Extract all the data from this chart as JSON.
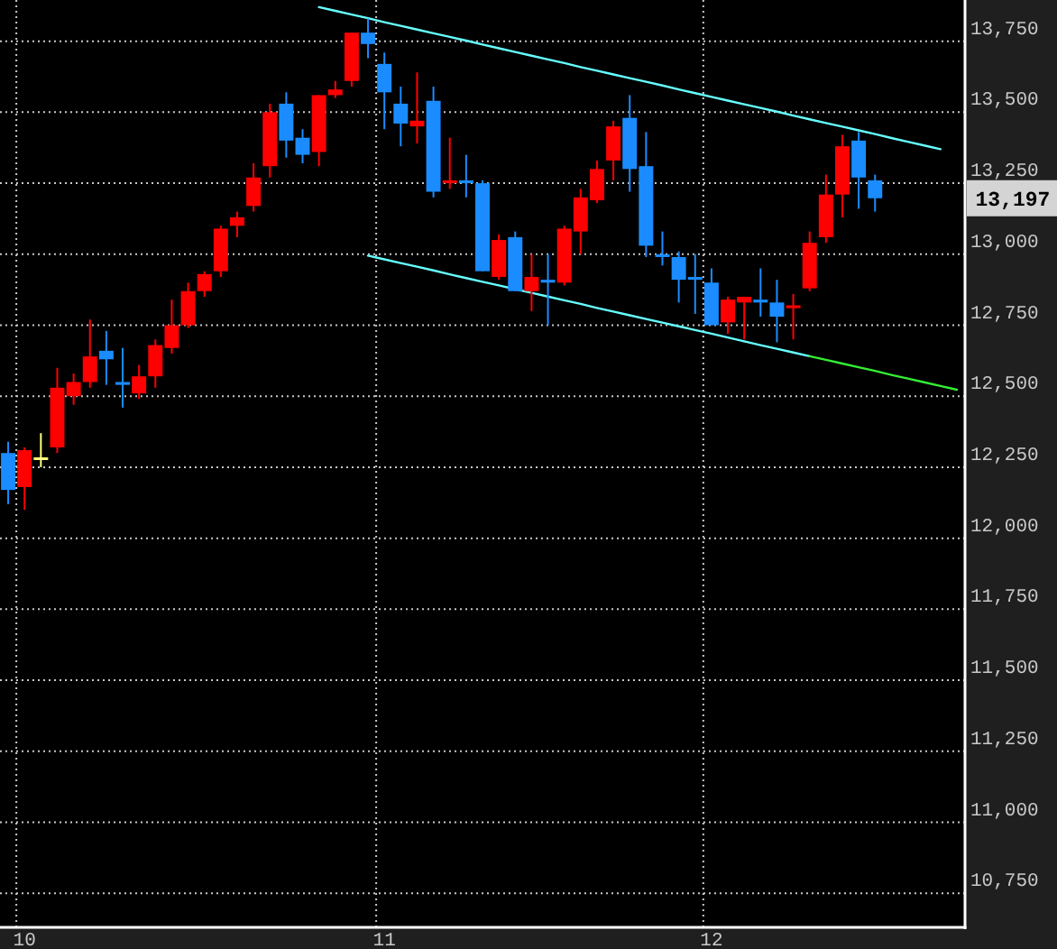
{
  "chart_data": {
    "type": "candlestick",
    "categories": [
      null,
      "10",
      null,
      null,
      null,
      null,
      null,
      null,
      null,
      null,
      null,
      null,
      null,
      null,
      null,
      null,
      null,
      null,
      null,
      null,
      null,
      null,
      null,
      "11",
      null,
      null,
      null,
      null,
      null,
      null,
      null,
      null,
      null,
      null,
      null,
      null,
      null,
      null,
      null,
      null,
      null,
      null,
      null,
      "12",
      null,
      null,
      null,
      null,
      null,
      null,
      null,
      null,
      null,
      null,
      null,
      null,
      null,
      null,
      null
    ],
    "ohlc": [
      [
        12300,
        12340,
        12120,
        12170
      ],
      [
        12180,
        12320,
        12100,
        12310
      ],
      [
        12280,
        12370,
        12250,
        12280
      ],
      [
        12320,
        12600,
        12300,
        12530
      ],
      [
        12500,
        12580,
        12470,
        12550
      ],
      [
        12550,
        12770,
        12530,
        12640
      ],
      [
        12660,
        12730,
        12540,
        12630
      ],
      [
        12550,
        12670,
        12460,
        12540
      ],
      [
        12510,
        12610,
        12490,
        12570
      ],
      [
        12570,
        12700,
        12530,
        12680
      ],
      [
        12670,
        12840,
        12650,
        12750
      ],
      [
        12750,
        12900,
        12740,
        12870
      ],
      [
        12870,
        12940,
        12850,
        12930
      ],
      [
        12940,
        13100,
        12920,
        13090
      ],
      [
        13100,
        13150,
        13060,
        13130
      ],
      [
        13170,
        13320,
        13150,
        13270
      ],
      [
        13310,
        13530,
        13270,
        13500
      ],
      [
        13530,
        13570,
        13340,
        13400
      ],
      [
        13410,
        13440,
        13320,
        13350
      ],
      [
        13360,
        13560,
        13310,
        13560
      ],
      [
        13560,
        13610,
        13550,
        13580
      ],
      [
        13610,
        13780,
        13590,
        13780
      ],
      [
        13780,
        13830,
        13690,
        13740
      ],
      [
        13670,
        13710,
        13440,
        13570
      ],
      [
        13530,
        13590,
        13380,
        13460
      ],
      [
        13450,
        13640,
        13390,
        13470
      ],
      [
        13540,
        13590,
        13200,
        13220
      ],
      [
        13250,
        13410,
        13230,
        13260
      ],
      [
        13260,
        13350,
        13200,
        13250
      ],
      [
        13250,
        13260,
        12940,
        12940
      ],
      [
        12920,
        13070,
        12910,
        13050
      ],
      [
        13060,
        13080,
        12870,
        12870
      ],
      [
        12870,
        13000,
        12800,
        12920
      ],
      [
        12910,
        13000,
        12750,
        12900
      ],
      [
        12900,
        13100,
        12890,
        13090
      ],
      [
        13080,
        13230,
        13000,
        13200
      ],
      [
        13190,
        13330,
        13180,
        13300
      ],
      [
        13330,
        13470,
        13260,
        13450
      ],
      [
        13480,
        13560,
        13220,
        13300
      ],
      [
        13310,
        13430,
        12990,
        13030
      ],
      [
        13000,
        13080,
        12960,
        12990
      ],
      [
        12990,
        13010,
        12830,
        12910
      ],
      [
        12920,
        13000,
        12790,
        12910
      ],
      [
        12900,
        12950,
        12750,
        12750
      ],
      [
        12760,
        12850,
        12720,
        12840
      ],
      [
        12830,
        12850,
        12700,
        12850
      ],
      [
        12840,
        12950,
        12780,
        12830
      ],
      [
        12830,
        12910,
        12690,
        12780
      ],
      [
        12810,
        12860,
        12700,
        12820
      ],
      [
        12880,
        13080,
        12870,
        13040
      ],
      [
        13060,
        13280,
        13040,
        13210
      ],
      [
        13210,
        13420,
        13130,
        13380
      ],
      [
        13400,
        13430,
        13160,
        13270
      ],
      [
        13260,
        13280,
        13150,
        13197
      ],
      null,
      null,
      null,
      null,
      null
    ],
    "colors": [
      "#1a8cff",
      "#ff0000",
      "#ffff80",
      "#ff0000",
      "#ff0000",
      "#ff0000",
      "#1a8cff",
      "#1a8cff",
      "#ff0000",
      "#ff0000",
      "#ff0000",
      "#ff0000",
      "#ff0000",
      "#ff0000",
      "#ff0000",
      "#ff0000",
      "#ff0000",
      "#1a8cff",
      "#1a8cff",
      "#ff0000",
      "#ff0000",
      "#ff0000",
      "#1a8cff",
      "#1a8cff",
      "#1a8cff",
      "#ff0000",
      "#1a8cff",
      "#ff0000",
      "#1a8cff",
      "#1a8cff",
      "#ff0000",
      "#1a8cff",
      "#ff0000",
      "#1a8cff",
      "#ff0000",
      "#ff0000",
      "#ff0000",
      "#ff0000",
      "#1a8cff",
      "#1a8cff",
      "#1a8cff",
      "#1a8cff",
      "#1a8cff",
      "#1a8cff",
      "#ff0000",
      "#ff0000",
      "#1a8cff",
      "#1a8cff",
      "#ff0000",
      "#ff0000",
      "#ff0000",
      "#ff0000",
      "#1a8cff",
      "#1a8cff",
      null,
      null,
      null,
      null,
      null
    ],
    "series": [
      {
        "type": "line",
        "color": "#66ffff",
        "values": [
          null,
          null,
          null,
          null,
          null,
          null,
          null,
          null,
          null,
          null,
          null,
          null,
          null,
          null,
          null,
          null,
          null,
          null,
          null,
          13870,
          13857,
          13844,
          13831,
          13817,
          13804,
          13791,
          13778,
          13765,
          13752,
          13738,
          13725,
          13712,
          13699,
          13686,
          13673,
          13659,
          13646,
          13633,
          13620,
          13607,
          13594,
          13580,
          13567,
          13554,
          13541,
          13528,
          13515,
          13502,
          13488,
          13475,
          13462,
          13449,
          13436,
          13423,
          13409,
          13396,
          13383,
          13370,
          null
        ]
      },
      {
        "type": "line",
        "color": "#66ffff",
        "values": [
          null,
          null,
          null,
          null,
          null,
          null,
          null,
          null,
          null,
          null,
          null,
          null,
          null,
          null,
          null,
          null,
          null,
          null,
          null,
          null,
          null,
          null,
          12995,
          12982,
          12969,
          12956,
          12943,
          12929,
          12916,
          12903,
          12890,
          12877,
          12864,
          12851,
          12838,
          12825,
          12811,
          12798,
          12785,
          12772,
          12759,
          12746,
          12733,
          12720,
          12707,
          12693,
          12680,
          12667,
          12654,
          12641,
          null,
          null,
          null,
          null,
          null,
          null,
          null,
          null,
          null
        ]
      },
      {
        "type": "line",
        "color": "#33ee33",
        "values": [
          null,
          null,
          null,
          null,
          null,
          null,
          null,
          null,
          null,
          null,
          null,
          null,
          null,
          null,
          null,
          null,
          null,
          null,
          null,
          null,
          null,
          null,
          null,
          null,
          null,
          null,
          null,
          null,
          null,
          null,
          null,
          null,
          null,
          null,
          null,
          null,
          null,
          null,
          null,
          null,
          null,
          null,
          null,
          null,
          null,
          null,
          null,
          null,
          null,
          12641,
          12628,
          12615,
          12602,
          12589,
          12575,
          12562,
          12549,
          12536,
          12523
        ]
      }
    ],
    "ylim": [
      10630,
      13895
    ],
    "yticks": [
      {
        "value": 10750,
        "label": "10,750"
      },
      {
        "value": 11000,
        "label": "11,000"
      },
      {
        "value": 11250,
        "label": "11,250"
      },
      {
        "value": 11500,
        "label": "11,500"
      },
      {
        "value": 11750,
        "label": "11,750"
      },
      {
        "value": 12000,
        "label": "12,000"
      },
      {
        "value": 12250,
        "label": "12,250"
      },
      {
        "value": 12500,
        "label": "12,500"
      },
      {
        "value": 12750,
        "label": "12,750"
      },
      {
        "value": 13000,
        "label": "13,000"
      },
      {
        "value": 13250,
        "label": "13,250"
      },
      {
        "value": 13500,
        "label": "13,500"
      },
      {
        "value": 13750,
        "label": "13,750"
      }
    ],
    "grid": true,
    "annotations": [
      "13,197"
    ]
  }
}
